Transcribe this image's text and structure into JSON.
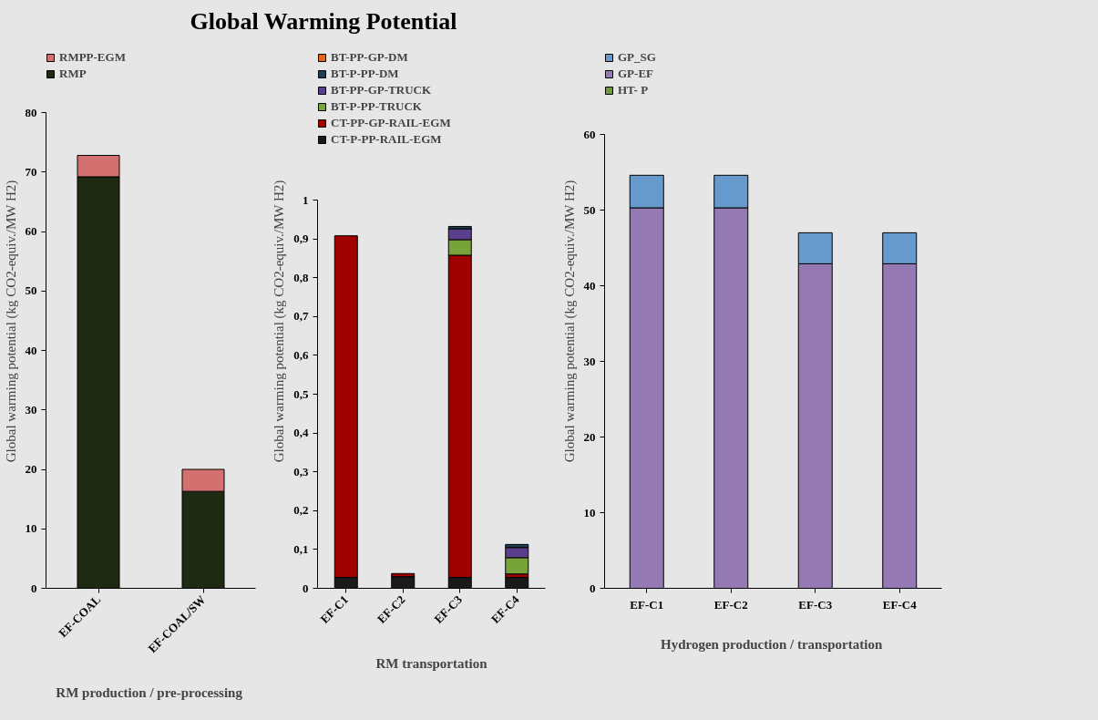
{
  "chart_data": [
    {
      "type": "bar",
      "title": "Global Warming Potential",
      "xlabel": "RM production  / pre-processing",
      "ylabel": "Global warming  potential (kg CO2-equiv./MW H2)",
      "categories": [
        "EF-COAL",
        "EF-COAL/SW"
      ],
      "stacked": true,
      "legend": "top",
      "grid": false,
      "ylim": [
        0,
        80
      ],
      "yticks": [
        0,
        10,
        20,
        30,
        40,
        50,
        60,
        70,
        80
      ],
      "series": [
        {
          "name": "RMP",
          "color": "#1f2a12",
          "values": [
            69.2,
            16.3
          ]
        },
        {
          "name": "RMPP-EGM",
          "color": "#d2716f",
          "values": [
            3.6,
            3.7
          ]
        }
      ]
    },
    {
      "type": "bar",
      "xlabel": "RM transportation",
      "ylabel": "Global warming  potential (kg CO2-equiv./MW H2)",
      "categories": [
        "EF-C1",
        "EF-C2",
        "EF-C3",
        "EF-C4"
      ],
      "stacked": true,
      "legend": "top",
      "grid": false,
      "ylim": [
        0,
        1
      ],
      "yticks": [
        0,
        {
          "value": 0.1,
          "label": "0,1"
        },
        {
          "value": 0.2,
          "label": "0,2"
        },
        {
          "value": 0.3,
          "label": "0,3"
        },
        {
          "value": 0.4,
          "label": "0,4"
        },
        {
          "value": 0.5,
          "label": "0,5"
        },
        {
          "value": 0.6,
          "label": "0,6"
        },
        {
          "value": 0.7,
          "label": "0,7"
        },
        {
          "value": 0.8,
          "label": "0,8"
        },
        {
          "value": 0.9,
          "label": "0,9"
        },
        1
      ],
      "series": [
        {
          "name": "CT-P-PP-RAIL-EGM",
          "color": "#1a1a1a",
          "values": [
            0.028,
            0.03,
            0.028,
            0.028
          ]
        },
        {
          "name": "CT-PP-GP-RAIL-EGM",
          "color": "#a00000",
          "values": [
            0.88,
            0.008,
            0.83,
            0.009
          ]
        },
        {
          "name": "BT-P-PP-TRUCK",
          "color": "#77a33a",
          "values": [
            null,
            null,
            0.04,
            0.042
          ]
        },
        {
          "name": "BT-PP-GP-TRUCK",
          "color": "#5b3f8c",
          "values": [
            null,
            null,
            0.028,
            0.026
          ]
        },
        {
          "name": "BT-P-PP-DM",
          "color": "#1c3f52",
          "values": [
            null,
            null,
            0.006,
            0.008
          ]
        },
        {
          "name": "BT-PP-GP-DM",
          "color": "#e0661e",
          "values": [
            null,
            null,
            null,
            null
          ]
        }
      ]
    },
    {
      "type": "bar",
      "xlabel": "Hydrogen production  / transportation",
      "ylabel": "Global warming  potential (kg CO2-equiv./MW H2)",
      "categories": [
        "EF-C1",
        "EF-C2",
        "EF-C3",
        "EF-C4"
      ],
      "stacked": true,
      "legend": "top",
      "grid": false,
      "ylim": [
        0,
        60
      ],
      "yticks": [
        0,
        10,
        20,
        30,
        40,
        50,
        60
      ],
      "series": [
        {
          "name": "HT- P",
          "color": "#6e9b3a",
          "values": [
            null,
            null,
            null,
            null
          ]
        },
        {
          "name": "GP-EF",
          "color": "#9579b3",
          "values": [
            50.3,
            50.3,
            42.9,
            42.9
          ]
        },
        {
          "name": "GP_SG",
          "color": "#6699cc",
          "values": [
            4.3,
            4.3,
            4.1,
            4.1
          ]
        }
      ]
    }
  ]
}
